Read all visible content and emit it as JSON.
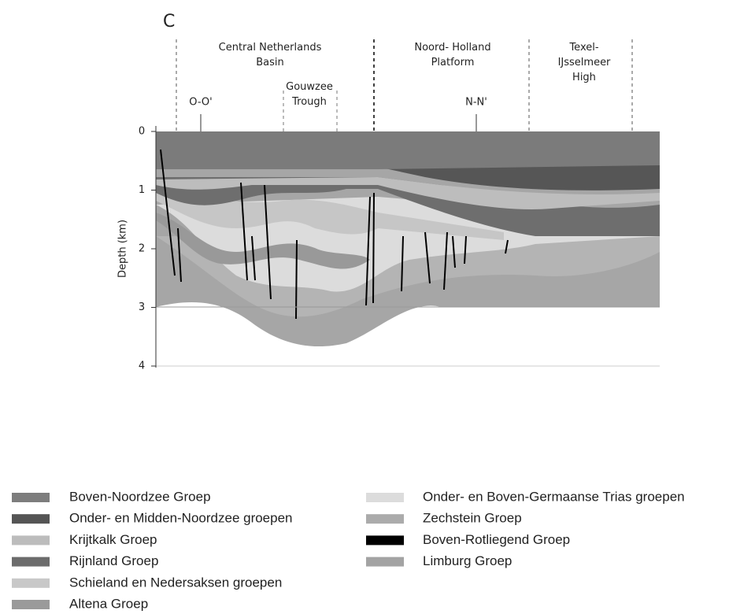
{
  "panel_label": "C",
  "regions": [
    {
      "label": "Central Netherlands Basin"
    },
    {
      "label": "Gouwzee Trough"
    },
    {
      "label": "Noord-Holland Platform"
    },
    {
      "label": "Texel-IJsselmeer High"
    }
  ],
  "section_markers": [
    "O-O'",
    "N-N'"
  ],
  "axis": {
    "label": "Depth (km)",
    "ticks": [
      "0",
      "1",
      "2",
      "3",
      "4"
    ]
  },
  "legend": {
    "left": [
      "Boven-Noordzee Groep",
      "Onder- en Midden-Noordzee groepen",
      "Krijtkalk Groep",
      "Rijnland Groep",
      "Schieland en Nedersaksen groepen",
      "Altena Groep"
    ],
    "right": [
      "Onder- en Boven-Germaanse Trias groepen",
      "Zechstein Groep",
      "Boven-Rotliegend Groep",
      "Limburg Groep"
    ]
  }
}
